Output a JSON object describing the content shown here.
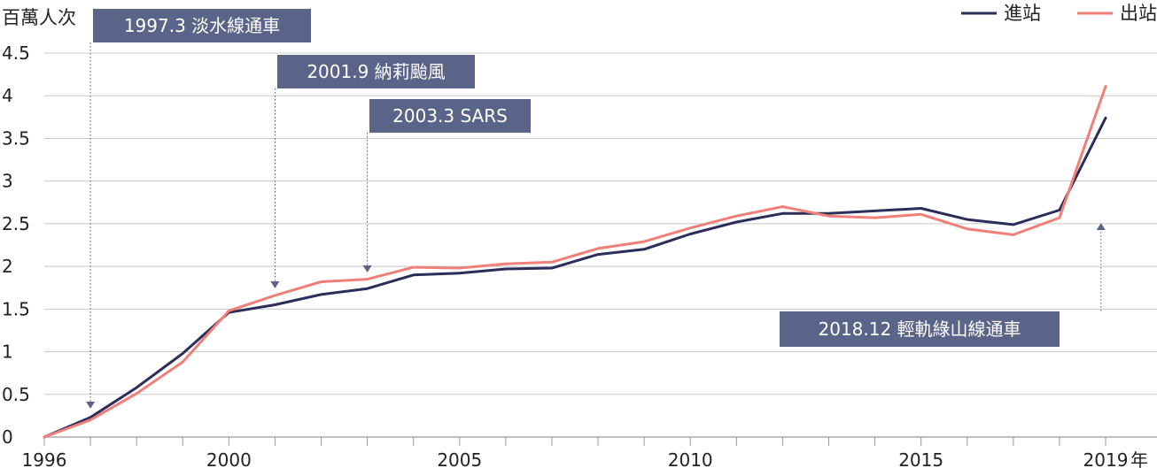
{
  "chart_data": {
    "type": "line",
    "ylabel": "百萬人次",
    "xlabel": "年",
    "x": [
      1996,
      1997,
      1998,
      1999,
      2000,
      2001,
      2002,
      2003,
      2004,
      2005,
      2006,
      2007,
      2008,
      2009,
      2010,
      2011,
      2012,
      2013,
      2014,
      2015,
      2016,
      2017,
      2018,
      2019
    ],
    "x_ticks": [
      1996,
      2000,
      2005,
      2010,
      2015,
      2019
    ],
    "y_ticks": [
      "0",
      "0.5",
      "1",
      "1.5",
      "2",
      "2.5",
      "3",
      "3.5",
      "4",
      "4.5"
    ],
    "ylim": [
      0,
      4.5
    ],
    "xlim": [
      1996,
      2019
    ],
    "grid": "horizontal",
    "legend_position": "top-right",
    "series": [
      {
        "name": "進站",
        "color": "#2b2d5a",
        "values": [
          0.0,
          0.23,
          0.58,
          0.98,
          1.46,
          1.55,
          1.67,
          1.74,
          1.9,
          1.92,
          1.97,
          1.98,
          2.14,
          2.2,
          2.38,
          2.52,
          2.62,
          2.62,
          2.65,
          2.68,
          2.55,
          2.49,
          2.66,
          3.74
        ]
      },
      {
        "name": "出站",
        "color": "#f07f78",
        "values": [
          0.0,
          0.2,
          0.51,
          0.88,
          1.48,
          1.66,
          1.82,
          1.85,
          1.99,
          1.98,
          2.03,
          2.05,
          2.21,
          2.29,
          2.45,
          2.59,
          2.7,
          2.59,
          2.57,
          2.61,
          2.44,
          2.37,
          2.57,
          4.11
        ]
      }
    ],
    "annotations": [
      {
        "label": "1997.3 淡水線通車",
        "x": 1997.0,
        "y": 0.23
      },
      {
        "label": "2001.9 納莉颱風",
        "x": 2001.0,
        "y": 1.55
      },
      {
        "label": "2003.3 SARS",
        "x": 2003.0,
        "y": 1.74
      },
      {
        "label": "2018.12 輕軌綠山線通車",
        "x": 2018.9,
        "y": 2.5
      }
    ]
  }
}
